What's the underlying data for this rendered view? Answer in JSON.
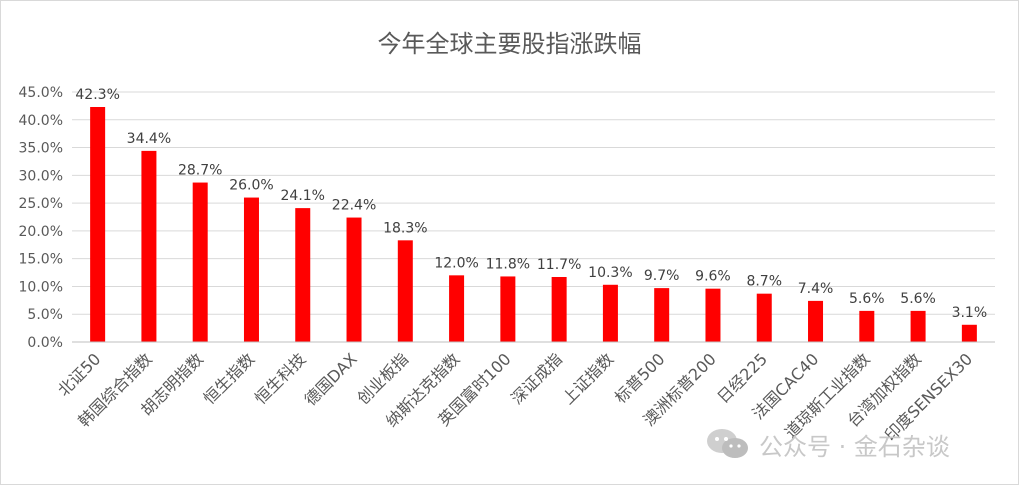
{
  "chart_data": {
    "type": "bar",
    "title": "今年全球主要股指涨跌幅",
    "categories": [
      "北证50",
      "韩国综合指数",
      "胡志明指数",
      "恒生指数",
      "恒生科技",
      "德国DAX",
      "创业板指",
      "纳斯达克指数",
      "英国富时100",
      "深证成指",
      "上证指数",
      "标普500",
      "澳洲标普200",
      "日经225",
      "法国CAC40",
      "道琼斯工业指数",
      "台湾加权指数",
      "印度SENSEX30"
    ],
    "values": [
      42.3,
      34.4,
      28.7,
      26.0,
      24.1,
      22.4,
      18.3,
      12.0,
      11.8,
      11.7,
      10.3,
      9.7,
      9.6,
      8.7,
      7.4,
      5.6,
      5.6,
      3.1
    ],
    "value_labels": [
      "42.3%",
      "34.4%",
      "28.7%",
      "26.0%",
      "24.1%",
      "22.4%",
      "18.3%",
      "12.0%",
      "11.8%",
      "11.7%",
      "10.3%",
      "9.7%",
      "9.6%",
      "8.7%",
      "7.4%",
      "5.6%",
      "5.6%",
      "3.1%"
    ],
    "y_ticks": [
      0,
      5,
      10,
      15,
      20,
      25,
      30,
      35,
      40,
      45
    ],
    "y_tick_labels": [
      "0.0%",
      "5.0%",
      "10.0%",
      "15.0%",
      "20.0%",
      "25.0%",
      "30.0%",
      "35.0%",
      "40.0%",
      "45.0%"
    ],
    "ylim": [
      0,
      45
    ],
    "xlabel": "",
    "ylabel": "",
    "grid": true,
    "legend": "none",
    "bar_color": "#ff0000"
  },
  "watermark": {
    "text": "公众号 · 金石杂谈",
    "icon": "wechat-icon"
  }
}
